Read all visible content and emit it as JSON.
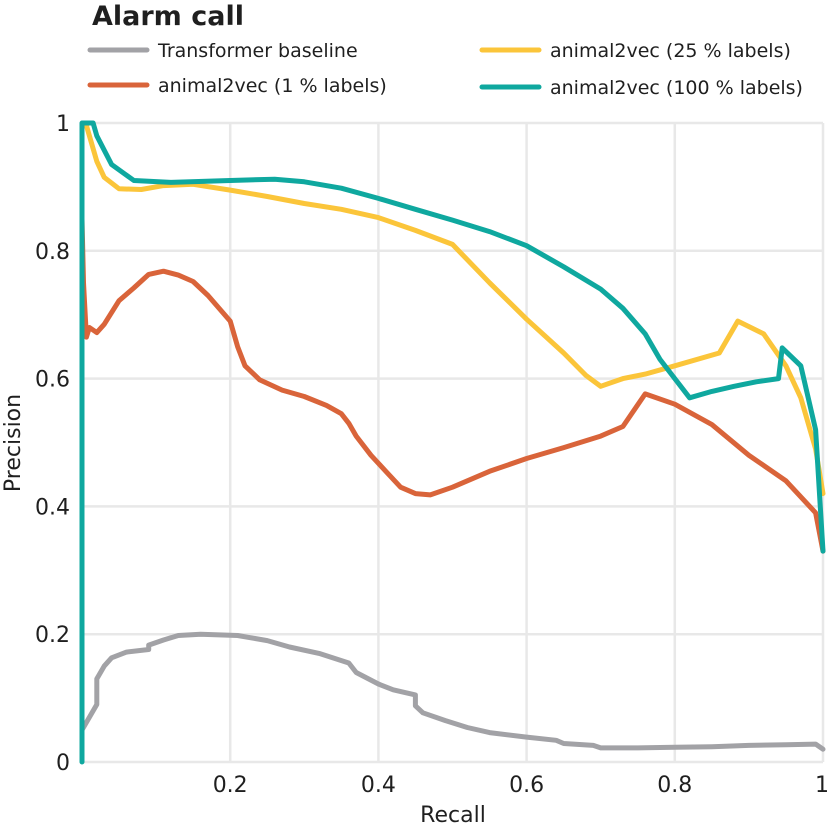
{
  "chart_data": {
    "type": "line",
    "title": "Alarm call",
    "xlabel": "Recall",
    "ylabel": "Precision",
    "xlim": [
      0,
      1
    ],
    "ylim": [
      0,
      1
    ],
    "grid": true,
    "legend_placement": "top",
    "x_ticks": [
      {
        "value": 0.2,
        "label": "0.2"
      },
      {
        "value": 0.4,
        "label": "0.4"
      },
      {
        "value": 0.6,
        "label": "0.6"
      },
      {
        "value": 0.8,
        "label": "0.8"
      },
      {
        "value": 1,
        "label": "1"
      }
    ],
    "y_ticks": [
      {
        "value": 0,
        "label": "0"
      },
      {
        "value": 0.2,
        "label": "0.2"
      },
      {
        "value": 0.4,
        "label": "0.4"
      },
      {
        "value": 0.6,
        "label": "0.6"
      },
      {
        "value": 0.8,
        "label": "0.8"
      },
      {
        "value": 1,
        "label": "1"
      }
    ],
    "series": [
      {
        "name": "Transformer baseline",
        "color": "#a2a2a6",
        "points": [
          [
            0,
            0.05
          ],
          [
            0.01,
            0.07
          ],
          [
            0.02,
            0.09
          ],
          [
            0.02,
            0.13
          ],
          [
            0.03,
            0.15
          ],
          [
            0.04,
            0.163
          ],
          [
            0.06,
            0.172
          ],
          [
            0.09,
            0.176
          ],
          [
            0.09,
            0.183
          ],
          [
            0.11,
            0.191
          ],
          [
            0.13,
            0.198
          ],
          [
            0.16,
            0.2
          ],
          [
            0.21,
            0.198
          ],
          [
            0.25,
            0.19
          ],
          [
            0.28,
            0.18
          ],
          [
            0.32,
            0.17
          ],
          [
            0.36,
            0.155
          ],
          [
            0.37,
            0.14
          ],
          [
            0.4,
            0.122
          ],
          [
            0.42,
            0.113
          ],
          [
            0.45,
            0.105
          ],
          [
            0.45,
            0.088
          ],
          [
            0.46,
            0.077
          ],
          [
            0.49,
            0.065
          ],
          [
            0.52,
            0.054
          ],
          [
            0.55,
            0.046
          ],
          [
            0.6,
            0.039
          ],
          [
            0.64,
            0.034
          ],
          [
            0.65,
            0.029
          ],
          [
            0.69,
            0.026
          ],
          [
            0.7,
            0.022
          ],
          [
            0.75,
            0.022
          ],
          [
            0.8,
            0.023
          ],
          [
            0.85,
            0.024
          ],
          [
            0.9,
            0.026
          ],
          [
            0.95,
            0.027
          ],
          [
            0.99,
            0.028
          ],
          [
            1,
            0.02
          ]
        ]
      },
      {
        "name": "animal2vec (1 % labels)",
        "color": "#d9643a",
        "points": [
          [
            0,
            0.85
          ],
          [
            0.002,
            0.75
          ],
          [
            0.006,
            0.665
          ],
          [
            0.01,
            0.68
          ],
          [
            0.02,
            0.672
          ],
          [
            0.03,
            0.685
          ],
          [
            0.05,
            0.722
          ],
          [
            0.07,
            0.742
          ],
          [
            0.09,
            0.763
          ],
          [
            0.11,
            0.768
          ],
          [
            0.13,
            0.762
          ],
          [
            0.15,
            0.752
          ],
          [
            0.17,
            0.73
          ],
          [
            0.2,
            0.69
          ],
          [
            0.21,
            0.65
          ],
          [
            0.22,
            0.62
          ],
          [
            0.24,
            0.598
          ],
          [
            0.27,
            0.582
          ],
          [
            0.3,
            0.572
          ],
          [
            0.33,
            0.558
          ],
          [
            0.35,
            0.545
          ],
          [
            0.36,
            0.53
          ],
          [
            0.37,
            0.51
          ],
          [
            0.39,
            0.48
          ],
          [
            0.41,
            0.455
          ],
          [
            0.43,
            0.43
          ],
          [
            0.45,
            0.42
          ],
          [
            0.47,
            0.418
          ],
          [
            0.5,
            0.43
          ],
          [
            0.55,
            0.455
          ],
          [
            0.6,
            0.475
          ],
          [
            0.65,
            0.492
          ],
          [
            0.7,
            0.51
          ],
          [
            0.73,
            0.525
          ],
          [
            0.76,
            0.576
          ],
          [
            0.8,
            0.56
          ],
          [
            0.85,
            0.528
          ],
          [
            0.9,
            0.48
          ],
          [
            0.95,
            0.44
          ],
          [
            0.99,
            0.39
          ],
          [
            1,
            0.33
          ]
        ]
      },
      {
        "name": "animal2vec (25 % labels)",
        "color": "#fbc53a",
        "points": [
          [
            0.005,
            1
          ],
          [
            0.01,
            0.98
          ],
          [
            0.02,
            0.94
          ],
          [
            0.03,
            0.915
          ],
          [
            0.05,
            0.897
          ],
          [
            0.08,
            0.896
          ],
          [
            0.11,
            0.902
          ],
          [
            0.15,
            0.904
          ],
          [
            0.2,
            0.895
          ],
          [
            0.25,
            0.885
          ],
          [
            0.3,
            0.874
          ],
          [
            0.35,
            0.865
          ],
          [
            0.4,
            0.852
          ],
          [
            0.45,
            0.832
          ],
          [
            0.5,
            0.81
          ],
          [
            0.55,
            0.75
          ],
          [
            0.6,
            0.693
          ],
          [
            0.65,
            0.64
          ],
          [
            0.68,
            0.605
          ],
          [
            0.7,
            0.588
          ],
          [
            0.73,
            0.6
          ],
          [
            0.76,
            0.607
          ],
          [
            0.8,
            0.62
          ],
          [
            0.86,
            0.64
          ],
          [
            0.885,
            0.69
          ],
          [
            0.92,
            0.67
          ],
          [
            0.95,
            0.62
          ],
          [
            0.97,
            0.57
          ],
          [
            0.99,
            0.49
          ],
          [
            1,
            0.42
          ]
        ]
      },
      {
        "name": "animal2vec (100 % labels)",
        "color": "#0fa89f",
        "points": [
          [
            0,
            0
          ],
          [
            0,
            1
          ],
          [
            0.015,
            1
          ],
          [
            0.02,
            0.98
          ],
          [
            0.04,
            0.935
          ],
          [
            0.07,
            0.91
          ],
          [
            0.12,
            0.907
          ],
          [
            0.2,
            0.91
          ],
          [
            0.26,
            0.912
          ],
          [
            0.3,
            0.908
          ],
          [
            0.35,
            0.898
          ],
          [
            0.4,
            0.882
          ],
          [
            0.45,
            0.865
          ],
          [
            0.5,
            0.848
          ],
          [
            0.55,
            0.83
          ],
          [
            0.6,
            0.808
          ],
          [
            0.65,
            0.775
          ],
          [
            0.7,
            0.74
          ],
          [
            0.73,
            0.71
          ],
          [
            0.76,
            0.67
          ],
          [
            0.78,
            0.63
          ],
          [
            0.8,
            0.6
          ],
          [
            0.82,
            0.57
          ],
          [
            0.85,
            0.58
          ],
          [
            0.88,
            0.588
          ],
          [
            0.91,
            0.595
          ],
          [
            0.94,
            0.6
          ],
          [
            0.945,
            0.648
          ],
          [
            0.97,
            0.62
          ],
          [
            0.99,
            0.52
          ],
          [
            1,
            0.33
          ]
        ]
      }
    ]
  }
}
